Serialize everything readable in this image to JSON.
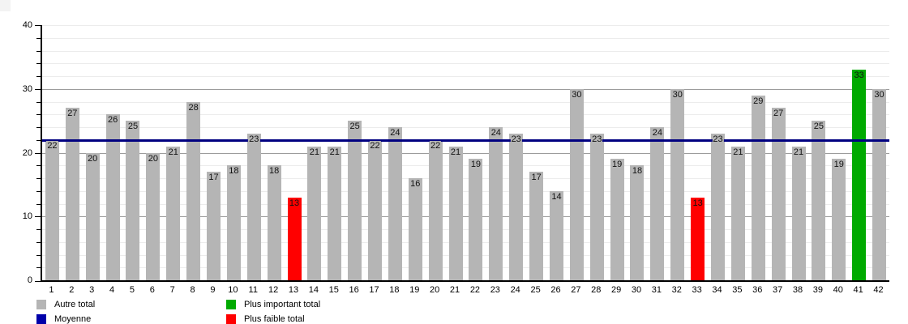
{
  "chart_data": {
    "type": "bar",
    "title": "",
    "categories": [
      "1",
      "2",
      "3",
      "4",
      "5",
      "6",
      "7",
      "8",
      "9",
      "10",
      "11",
      "12",
      "13",
      "14",
      "15",
      "16",
      "17",
      "18",
      "19",
      "20",
      "21",
      "22",
      "23",
      "24",
      "25",
      "26",
      "27",
      "28",
      "29",
      "30",
      "31",
      "32",
      "33",
      "34",
      "35",
      "36",
      "37",
      "38",
      "39",
      "40",
      "41",
      "42"
    ],
    "values": [
      22,
      27,
      20,
      26,
      25,
      20,
      21,
      28,
      17,
      18,
      23,
      18,
      13,
      21,
      21,
      25,
      22,
      24,
      16,
      22,
      21,
      19,
      24,
      23,
      17,
      14,
      30,
      23,
      19,
      18,
      24,
      30,
      13,
      23,
      21,
      29,
      27,
      21,
      25,
      19,
      33,
      30
    ],
    "xlabel": "",
    "ylabel": "",
    "ylim": [
      0,
      40
    ],
    "yticks": [
      0,
      10,
      20,
      30,
      40
    ],
    "grid_step": 2,
    "grid_on": true,
    "mean_line_value": 22,
    "mean_line_color": "#000080",
    "bar_default_color": "#b5b5b5",
    "bar_max_color": "#00aa00",
    "bar_min_color": "#ff0000",
    "max_indices": [
      40
    ],
    "min_indices": [
      12,
      32
    ],
    "legend_position": "bottom"
  },
  "legend": {
    "items": [
      {
        "label": "Autre total",
        "color": "#b5b5b5"
      },
      {
        "label": "Moyenne",
        "color": "#0000aa"
      },
      {
        "label": "Plus important total",
        "color": "#00aa00"
      },
      {
        "label": "Plus faible total",
        "color": "#ff0000"
      }
    ]
  }
}
